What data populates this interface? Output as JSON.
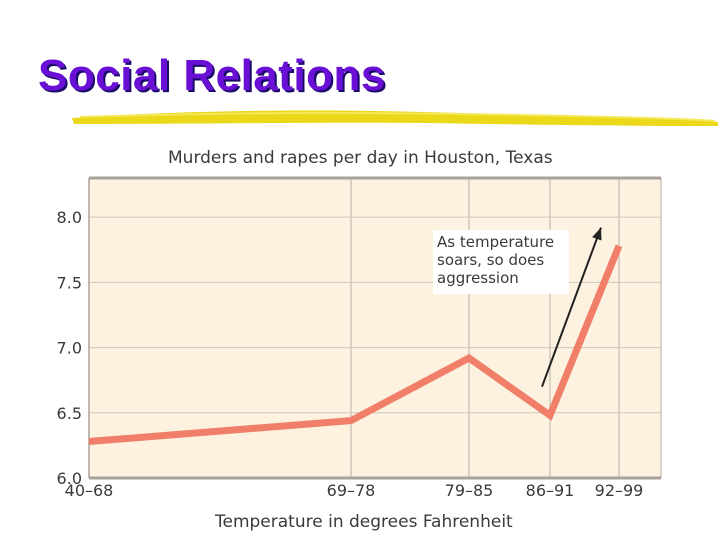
{
  "slide": {
    "title": "Social Relations"
  },
  "colors": {
    "title": "#6a0fd6",
    "title_shadow": "#1a0a6a",
    "rule": "#e8d400",
    "plot_background": "#fdf1df",
    "grid": "#cfc6bb",
    "line": "#f07e68",
    "arrow": "#222222"
  },
  "chart_data": {
    "type": "line",
    "title": "Murders and rapes per day in Houston, Texas",
    "xlabel": "Temperature in degrees Fahrenheit",
    "ylabel": "",
    "categories": [
      "40–68",
      "69–78",
      "79–85",
      "86–91",
      "92–99"
    ],
    "x_tick_labels": [
      "40–68",
      "69–78",
      "79–85",
      "86–91",
      "92–99"
    ],
    "y_tick_labels": [
      "6.0",
      "6.5",
      "7.0",
      "7.5",
      "8.0"
    ],
    "ylim": [
      6.0,
      8.3
    ],
    "grid": true,
    "series": [
      {
        "points": [
          {
            "x": "40–68",
            "y": 6.28
          },
          {
            "x": "69–78",
            "y": 6.44
          },
          {
            "x": "79–85",
            "y": 6.92
          },
          {
            "x": "86–91",
            "y": 6.48
          },
          {
            "x": "92–99",
            "y": 7.78
          }
        ]
      }
    ],
    "annotation": {
      "text_lines": [
        "As temperature",
        "soars, so does",
        "aggression"
      ],
      "arrow_from": {
        "x": "86–91",
        "y": 6.7
      },
      "arrow_to": {
        "x": "92–99",
        "y": 7.92
      }
    }
  }
}
